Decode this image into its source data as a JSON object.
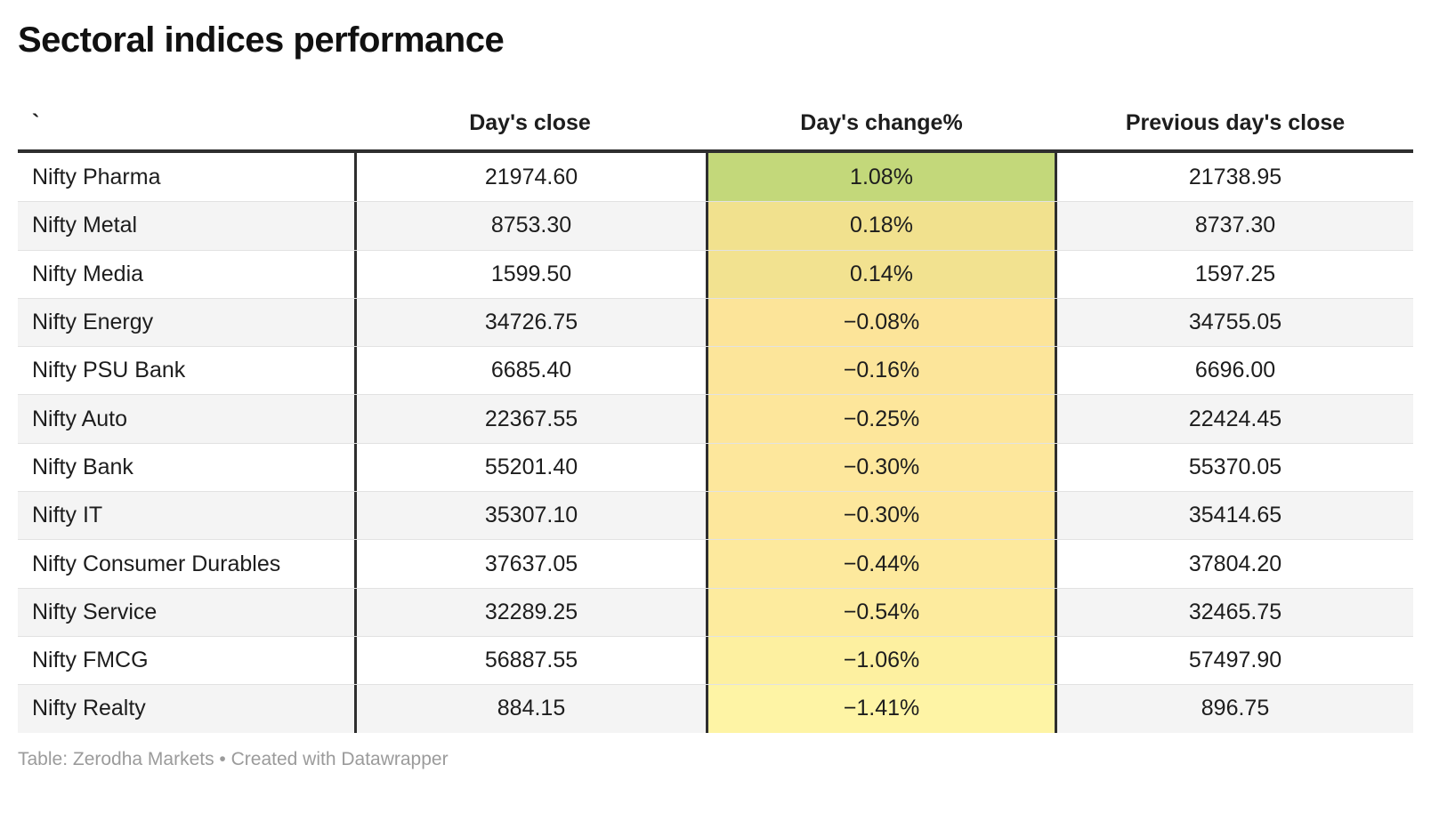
{
  "title": "Sectoral indices performance",
  "footer": "Table: Zerodha Markets • Created with Datawrapper",
  "colors": {
    "border_dark": "#2e2e2e",
    "zebra_row": "#f4f4f4",
    "row_divider": "#e2e2e2",
    "text": "#1d1d1d",
    "footer_text": "#9b9b9b",
    "heat_positive_max": "#c3d87a",
    "heat_negative_min": "#fef4a5"
  },
  "chart_data": {
    "type": "table",
    "title": "Sectoral indices performance",
    "columns": [
      "`",
      "Day's close",
      "Day's change%",
      "Previous day's close"
    ],
    "heatmap_column": "Day's change%",
    "rows": [
      {
        "name": "Nifty Pharma",
        "close": "21974.60",
        "change": "1.08%",
        "change_color": "#c3d87a",
        "prev": "21738.95"
      },
      {
        "name": "Nifty Metal",
        "close": "8753.30",
        "change": "0.18%",
        "change_color": "#f1e18e",
        "prev": "8737.30"
      },
      {
        "name": "Nifty Media",
        "close": "1599.50",
        "change": "0.14%",
        "change_color": "#f2e290",
        "prev": "1597.25"
      },
      {
        "name": "Nifty Energy",
        "close": "34726.75",
        "change": "−0.08%",
        "change_color": "#fce499",
        "prev": "34755.05"
      },
      {
        "name": "Nifty PSU Bank",
        "close": "6685.40",
        "change": "−0.16%",
        "change_color": "#fce59a",
        "prev": "6696.00"
      },
      {
        "name": "Nifty Auto",
        "close": "22367.55",
        "change": "−0.25%",
        "change_color": "#fde69b",
        "prev": "22424.45"
      },
      {
        "name": "Nifty Bank",
        "close": "55201.40",
        "change": "−0.30%",
        "change_color": "#fde79c",
        "prev": "55370.05"
      },
      {
        "name": "Nifty IT",
        "close": "35307.10",
        "change": "−0.30%",
        "change_color": "#fde79c",
        "prev": "35414.65"
      },
      {
        "name": "Nifty Consumer Durables",
        "close": "37637.05",
        "change": "−0.44%",
        "change_color": "#fde99d",
        "prev": "37804.20"
      },
      {
        "name": "Nifty Service",
        "close": "32289.25",
        "change": "−0.54%",
        "change_color": "#fdeb9e",
        "prev": "32465.75"
      },
      {
        "name": "Nifty FMCG",
        "close": "56887.55",
        "change": "−1.06%",
        "change_color": "#fdf0a0",
        "prev": "57497.90"
      },
      {
        "name": "Nifty Realty",
        "close": "884.15",
        "change": "−1.41%",
        "change_color": "#fef4a5",
        "prev": "896.75"
      }
    ]
  }
}
